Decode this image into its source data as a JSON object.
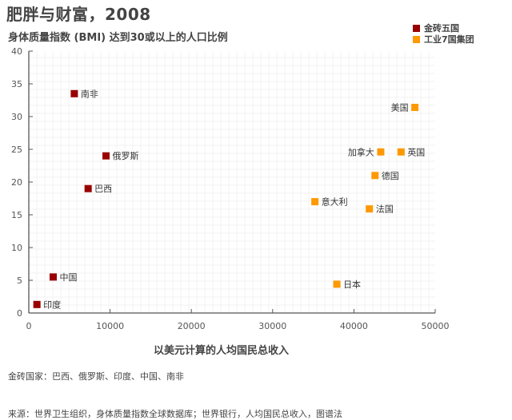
{
  "header": {
    "title": "肥胖与财富，2008",
    "subtitle": "身体质量指数 (BMI) 达到30或以上的人口比例"
  },
  "legend": [
    {
      "label": "金砖五国",
      "color": "#990000"
    },
    {
      "label": "工业7国集团",
      "color": "#ff9900"
    }
  ],
  "footer": {
    "note": "金砖国家：巴西、俄罗斯、印度、中国、南非",
    "source": "来源：世界卫生组织，身体质量指数全球数据库；世界银行，人均国民总收入，图谱法"
  },
  "chart_data": {
    "type": "scatter",
    "title": "肥胖与财富，2008",
    "subtitle": "身体质量指数 (BMI) 达到30或以上的人口比例",
    "xlabel": "以美元计算的人均国民总收入",
    "ylabel": "",
    "xlim": [
      0,
      50000
    ],
    "ylim": [
      0,
      40
    ],
    "xticks": [
      0,
      10000,
      20000,
      30000,
      40000,
      50000
    ],
    "yticks": [
      0,
      5,
      10,
      15,
      20,
      25,
      30,
      35,
      40
    ],
    "grid": true,
    "legend_position": "top-right",
    "series": [
      {
        "name": "金砖五国",
        "color": "#990000",
        "points": [
          {
            "label": "南非",
            "x": 5600,
            "y": 33.5,
            "label_side": "right"
          },
          {
            "label": "俄罗斯",
            "x": 9500,
            "y": 24.0,
            "label_side": "right"
          },
          {
            "label": "巴西",
            "x": 7300,
            "y": 19.0,
            "label_side": "right"
          },
          {
            "label": "中国",
            "x": 3000,
            "y": 5.5,
            "label_side": "right"
          },
          {
            "label": "印度",
            "x": 1000,
            "y": 1.3,
            "label_side": "right"
          }
        ]
      },
      {
        "name": "工业7国集团",
        "color": "#ff9900",
        "points": [
          {
            "label": "美国",
            "x": 47500,
            "y": 31.4,
            "label_side": "left"
          },
          {
            "label": "加拿大",
            "x": 43300,
            "y": 24.6,
            "label_side": "left"
          },
          {
            "label": "英国",
            "x": 45800,
            "y": 24.6,
            "label_side": "right"
          },
          {
            "label": "德国",
            "x": 42600,
            "y": 21.0,
            "label_side": "right"
          },
          {
            "label": "意大利",
            "x": 35200,
            "y": 17.0,
            "label_side": "right"
          },
          {
            "label": "法国",
            "x": 41900,
            "y": 15.9,
            "label_side": "right"
          },
          {
            "label": "日本",
            "x": 37900,
            "y": 4.4,
            "label_side": "right"
          }
        ]
      }
    ]
  }
}
